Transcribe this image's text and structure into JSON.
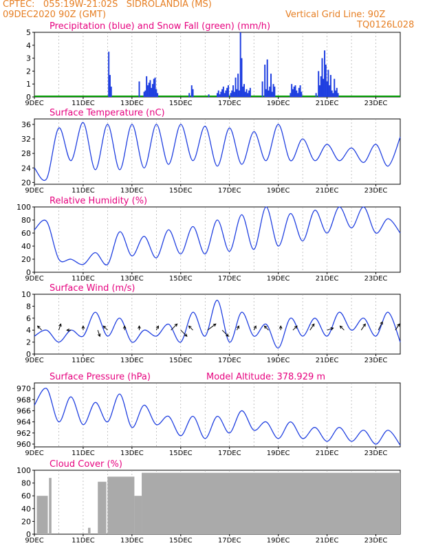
{
  "header": {
    "line1_left": "CPTEC:   055:19W-21:02S   SIDROLANDIA (MS)",
    "line2_left": "09DEC2020 90Z (GMT)",
    "line2_right": "Vertical Grid Line: 90Z",
    "line3_right": "TQ0126L028"
  },
  "colors": {
    "header": "#e67e22",
    "title": "#e6007e",
    "line": "#1f3fe0",
    "snow": "#00a000",
    "cloud": "#aaaaaa",
    "grid": "#9a9a9a"
  },
  "x_tick_labels": [
    "9DEC",
    "11DEC",
    "13DEC",
    "15DEC",
    "17DEC",
    "19DEC",
    "21DEC",
    "23DEC"
  ],
  "model_altitude": "Model Altitude: 378.929 m",
  "chart_data": [
    {
      "type": "bar",
      "title": "Precipitation (blue) and Snow Fall (green) (mm/h)",
      "ylim": [
        0,
        5
      ],
      "yticks": [
        "0",
        "1",
        "2",
        "3",
        "4",
        "5"
      ],
      "x_days_since_9dec": [
        3.05,
        3.1,
        3.15,
        4.3,
        4.5,
        4.55,
        4.6,
        4.65,
        4.7,
        4.75,
        4.8,
        4.85,
        4.9,
        4.95,
        5.0,
        5.05,
        6.35,
        6.45,
        6.5,
        7.15,
        7.5,
        7.55,
        7.6,
        7.65,
        7.7,
        7.75,
        7.8,
        7.85,
        7.9,
        7.95,
        8.05,
        8.1,
        8.15,
        8.2,
        8.25,
        8.3,
        8.35,
        8.4,
        8.45,
        8.5,
        8.55,
        8.6,
        8.65,
        8.7,
        8.75,
        8.8,
        8.85,
        9.35,
        9.45,
        9.5,
        9.55,
        9.6,
        9.65,
        9.7,
        9.75,
        9.8,
        9.85,
        10.5,
        10.55,
        10.6,
        10.65,
        10.7,
        10.75,
        10.8,
        10.85,
        10.9,
        10.95,
        11.55,
        11.65,
        11.7,
        11.75,
        11.8,
        11.85,
        11.9,
        11.95,
        12.0,
        12.05,
        12.1,
        12.15,
        12.2,
        12.25,
        12.3,
        12.35,
        12.4,
        12.45
      ],
      "precip_mm_h": [
        3.5,
        1.7,
        0.8,
        1.2,
        0.4,
        0.5,
        1.6,
        0.9,
        1.1,
        1.3,
        0.7,
        1.0,
        1.4,
        1.5,
        0.6,
        0.3,
        0.3,
        0.9,
        0.6,
        0.2,
        0.3,
        0.5,
        0.2,
        0.4,
        0.6,
        0.8,
        0.3,
        0.5,
        0.7,
        0.9,
        0.3,
        0.5,
        0.9,
        0.4,
        1.5,
        0.6,
        1.8,
        0.5,
        5.0,
        3.0,
        0.8,
        1.0,
        0.4,
        0.6,
        0.3,
        0.5,
        0.7,
        1.2,
        2.5,
        0.6,
        2.9,
        0.5,
        0.8,
        1.8,
        0.4,
        1.0,
        0.8,
        0.3,
        1.0,
        0.6,
        0.8,
        0.9,
        0.5,
        0.3,
        0.7,
        0.9,
        0.4,
        0.3,
        2.0,
        0.9,
        1.6,
        3.0,
        1.4,
        3.6,
        2.5,
        1.2,
        2.1,
        0.9,
        1.7,
        0.5,
        0.3,
        1.4,
        0.5,
        0.7,
        0.3
      ],
      "snow_mm_h": 0
    },
    {
      "type": "line",
      "title": "Surface Temperature (nC)",
      "ylim": [
        19.5,
        37.5
      ],
      "yticks": [
        "20",
        "24",
        "28",
        "32",
        "36"
      ],
      "tick_values": [
        20,
        24,
        28,
        32,
        36
      ],
      "t_days": [
        0,
        0.5,
        1,
        1.5,
        2,
        2.5,
        3,
        3.5,
        4,
        4.5,
        5,
        5.5,
        6,
        6.5,
        7,
        7.5,
        8,
        8.5,
        9,
        9.5,
        10,
        10.5,
        11,
        11.5,
        12,
        12.5,
        13,
        13.5,
        14,
        14.5,
        15
      ],
      "values": [
        24,
        21,
        35,
        26,
        36.5,
        23.5,
        36,
        23.5,
        36,
        24,
        36,
        25,
        36,
        26,
        35.5,
        24.5,
        35,
        25,
        34,
        26,
        36,
        26,
        32,
        26,
        30.5,
        26,
        29.5,
        25.5,
        30.5,
        24.5,
        32.5
      ]
    },
    {
      "type": "line",
      "title": "Relative Humidity (%)",
      "ylim": [
        0,
        100
      ],
      "yticks": [
        "0",
        "20",
        "40",
        "60",
        "80",
        "100"
      ],
      "tick_values": [
        0,
        20,
        40,
        60,
        80,
        100
      ],
      "t_days": [
        0,
        0.5,
        1,
        1.5,
        2,
        2.5,
        3,
        3.5,
        4,
        4.5,
        5,
        5.5,
        6,
        6.5,
        7,
        7.5,
        8,
        8.5,
        9,
        9.5,
        10,
        10.5,
        11,
        11.5,
        12,
        12.5,
        13,
        13.5,
        14,
        14.5,
        15
      ],
      "values": [
        65,
        78,
        20,
        20,
        12,
        30,
        12,
        62,
        25,
        55,
        22,
        65,
        28,
        70,
        28,
        80,
        32,
        88,
        35,
        100,
        40,
        90,
        48,
        95,
        60,
        100,
        68,
        100,
        60,
        82,
        60
      ]
    },
    {
      "type": "line",
      "title": "Surface Wind (m/s)",
      "ylim": [
        0,
        10
      ],
      "yticks": [
        "0",
        "2",
        "4",
        "6",
        "8",
        "10"
      ],
      "tick_values": [
        0,
        2,
        4,
        6,
        8,
        10
      ],
      "t_days": [
        0,
        0.5,
        1,
        1.5,
        2,
        2.5,
        3,
        3.5,
        4,
        4.5,
        5,
        5.5,
        6,
        6.5,
        7,
        7.5,
        8,
        8.5,
        9,
        9.5,
        10,
        10.5,
        11,
        11.5,
        12,
        12.5,
        13,
        13.5,
        14,
        14.5,
        15
      ],
      "values": [
        3,
        4,
        2,
        4,
        3,
        7,
        3,
        6,
        2,
        4,
        3,
        5,
        2,
        7,
        3,
        9,
        2,
        7,
        3,
        5,
        1,
        6,
        3,
        6,
        3,
        7,
        4,
        6,
        3,
        7,
        2
      ],
      "arrows": [
        {
          "t": 0.3,
          "u": -1,
          "v": 1
        },
        {
          "t": 1.0,
          "u": 0.5,
          "v": 1.5
        },
        {
          "t": 1.5,
          "u": -1,
          "v": 0
        },
        {
          "t": 2.0,
          "u": 0,
          "v": 1
        },
        {
          "t": 2.6,
          "u": 0.5,
          "v": -1.5
        },
        {
          "t": 3.0,
          "u": -1,
          "v": 1
        },
        {
          "t": 3.7,
          "u": 0,
          "v": 1
        },
        {
          "t": 4.3,
          "u": 0,
          "v": 1
        },
        {
          "t": 5.0,
          "u": 0.5,
          "v": 1
        },
        {
          "t": 5.6,
          "u": 1.5,
          "v": 1.5
        },
        {
          "t": 6.0,
          "u": 1.5,
          "v": -1.5
        },
        {
          "t": 6.5,
          "u": -1,
          "v": 1
        },
        {
          "t": 7.1,
          "u": 2.0,
          "v": 1.5
        },
        {
          "t": 7.7,
          "u": 1.5,
          "v": -1.5
        },
        {
          "t": 8.3,
          "u": 0.5,
          "v": 1
        },
        {
          "t": 9.0,
          "u": 0.5,
          "v": 1
        },
        {
          "t": 9.6,
          "u": -1,
          "v": 1
        },
        {
          "t": 10.1,
          "u": 0,
          "v": 1
        },
        {
          "t": 10.6,
          "u": 1,
          "v": 1
        },
        {
          "t": 11.3,
          "u": 1,
          "v": 1.5
        },
        {
          "t": 12.0,
          "u": 1.5,
          "v": 0.5
        },
        {
          "t": 12.7,
          "u": -1,
          "v": 1
        },
        {
          "t": 13.4,
          "u": 1,
          "v": 1.5
        },
        {
          "t": 14.1,
          "u": 1,
          "v": 2
        },
        {
          "t": 14.8,
          "u": 1,
          "v": 1.5
        }
      ]
    },
    {
      "type": "line",
      "title": "Surface Pressure (hPa)",
      "ylim": [
        959.5,
        971
      ],
      "yticks": [
        "960",
        "962",
        "964",
        "966",
        "968",
        "970"
      ],
      "tick_values": [
        960,
        962,
        964,
        966,
        968,
        970
      ],
      "t_days": [
        0,
        0.5,
        1,
        1.5,
        2,
        2.5,
        3,
        3.5,
        4,
        4.5,
        5,
        5.5,
        6,
        6.5,
        7,
        7.5,
        8,
        8.5,
        9,
        9.5,
        10,
        10.5,
        11,
        11.5,
        12,
        12.5,
        13,
        13.5,
        14,
        14.5,
        15
      ],
      "values": [
        967,
        970,
        964,
        968.5,
        963.5,
        967.5,
        964,
        969,
        963,
        967,
        963.5,
        965,
        961.5,
        965,
        961,
        965,
        962,
        966,
        962.5,
        964,
        961,
        964,
        961,
        963,
        960.5,
        963,
        960.5,
        962.5,
        960,
        962.5,
        959.8
      ]
    },
    {
      "type": "bar",
      "title": "Cloud Cover (%)",
      "ylim": [
        0,
        100
      ],
      "yticks": [
        "0",
        "20",
        "40",
        "60",
        "80",
        "100"
      ],
      "tick_values": [
        0,
        20,
        40,
        60,
        80,
        100
      ],
      "segments": [
        {
          "start": 0.1,
          "end": 0.55,
          "level": 60
        },
        {
          "start": 0.6,
          "end": 0.7,
          "level": 88
        },
        {
          "start": 2.2,
          "end": 2.3,
          "level": 10
        },
        {
          "start": 2.6,
          "end": 2.95,
          "level": 82
        },
        {
          "start": 3.0,
          "end": 4.1,
          "level": 90
        },
        {
          "start": 4.1,
          "end": 4.4,
          "level": 60
        },
        {
          "start": 4.4,
          "end": 15.0,
          "level": 96
        }
      ]
    }
  ]
}
